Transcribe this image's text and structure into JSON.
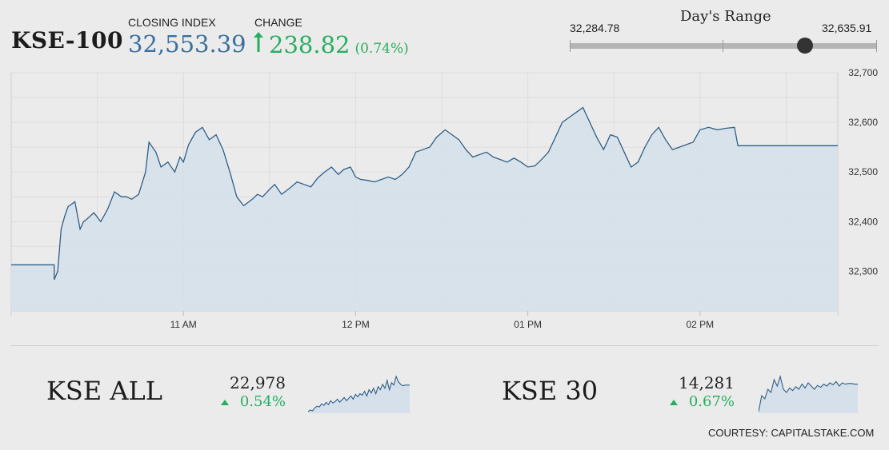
{
  "header": {
    "index_name": "KSE-100",
    "closing_label": "CLOSING INDEX",
    "closing_value": "32,553.39",
    "change_label": "CHANGE",
    "change_value": "238.82",
    "change_pct": "(0.74%)",
    "change_direction": "up",
    "up_color": "#27ae60",
    "value_color": "#3a6fa0"
  },
  "day_range": {
    "title": "Day's Range",
    "low_label": "32,284.78",
    "high_label": "32,635.91",
    "low": 32284.78,
    "high": 32635.91,
    "current": 32553.39
  },
  "chart_data": {
    "type": "area",
    "title": "",
    "xlabel": "",
    "ylabel": "",
    "ylim": [
      32220,
      32700
    ],
    "yticks": [
      32300,
      32400,
      32500,
      32600,
      32700
    ],
    "ytick_labels": [
      "32,300",
      "32,400",
      "32,500",
      "32,600",
      "32,700"
    ],
    "xlim": [
      10.0,
      14.8
    ],
    "xticks": [
      11,
      12,
      13,
      14
    ],
    "xtick_labels": [
      "11 AM",
      "12 PM",
      "01 PM",
      "02 PM"
    ],
    "grid": true,
    "line_color": "#2f5f8a",
    "fill_color": "#d5e0ea",
    "series": [
      {
        "x": [
          10.0,
          10.25,
          10.25,
          10.27,
          10.29,
          10.31,
          10.33,
          10.37,
          10.4,
          10.42,
          10.44,
          10.48,
          10.52,
          10.56,
          10.6,
          10.64,
          10.67,
          10.7,
          10.74,
          10.78,
          10.8,
          10.84,
          10.87,
          10.91,
          10.95,
          10.98,
          11.0,
          11.03,
          11.07,
          11.11,
          11.15,
          11.19,
          11.23,
          11.27,
          11.31,
          11.35,
          11.4,
          11.43,
          11.46,
          11.5,
          11.53,
          11.57,
          11.62,
          11.66,
          11.7,
          11.74,
          11.78,
          11.82,
          11.86,
          11.9,
          11.93,
          11.97,
          12.0,
          12.03,
          12.07,
          12.11,
          12.15,
          12.19,
          12.23,
          12.27,
          12.31,
          12.35,
          12.39,
          12.43,
          12.47,
          12.52,
          12.56,
          12.6,
          12.64,
          12.68,
          12.72,
          12.76,
          12.8,
          12.84,
          12.88,
          12.92,
          12.96,
          13.0,
          13.04,
          13.08,
          13.12,
          13.16,
          13.2,
          13.24,
          13.28,
          13.32,
          13.36,
          13.4,
          13.44,
          13.48,
          13.52,
          13.56,
          13.6,
          13.64,
          13.68,
          13.72,
          13.76,
          13.8,
          13.84,
          13.88,
          13.92,
          13.96,
          14.0,
          14.05,
          14.1,
          14.15,
          14.2,
          14.22,
          14.8
        ],
        "y": [
          32313,
          32313,
          32283,
          32300,
          32385,
          32410,
          32430,
          32440,
          32385,
          32400,
          32405,
          32418,
          32400,
          32425,
          32460,
          32450,
          32450,
          32445,
          32455,
          32500,
          32560,
          32540,
          32510,
          32520,
          32500,
          32530,
          32520,
          32555,
          32580,
          32590,
          32565,
          32575,
          32545,
          32500,
          32450,
          32432,
          32445,
          32455,
          32450,
          32465,
          32475,
          32455,
          32468,
          32480,
          32475,
          32470,
          32488,
          32500,
          32510,
          32495,
          32505,
          32510,
          32490,
          32485,
          32483,
          32480,
          32485,
          32490,
          32485,
          32495,
          32510,
          32540,
          32545,
          32550,
          32570,
          32585,
          32575,
          32565,
          32545,
          32530,
          32535,
          32540,
          32530,
          32525,
          32520,
          32528,
          32520,
          32510,
          32512,
          32525,
          32540,
          32570,
          32600,
          32610,
          32620,
          32630,
          32600,
          32570,
          32545,
          32575,
          32570,
          32540,
          32510,
          32520,
          32550,
          32575,
          32590,
          32565,
          32545,
          32550,
          32555,
          32560,
          32585,
          32590,
          32585,
          32588,
          32590,
          32553,
          32553
        ]
      }
    ]
  },
  "indices": [
    {
      "name": "KSE ALL",
      "value": "22,978",
      "change_pct": "0.54%",
      "spark": [
        10,
        12,
        11,
        15,
        17,
        16,
        20,
        18,
        22,
        19,
        24,
        21,
        23,
        26,
        22,
        25,
        28,
        24,
        27,
        30,
        26,
        32,
        29,
        33,
        31,
        36,
        30,
        38,
        34,
        40,
        33,
        42,
        38,
        45,
        40,
        50,
        38,
        47,
        44,
        55,
        48,
        45,
        43,
        44,
        44,
        44
      ]
    },
    {
      "name": "KSE 30",
      "value": "14,281",
      "change_pct": "0.67%",
      "spark": [
        5,
        30,
        25,
        40,
        35,
        55,
        45,
        60,
        40,
        35,
        42,
        38,
        44,
        40,
        48,
        42,
        50,
        45,
        40,
        46,
        43,
        48,
        45,
        50,
        47,
        52,
        45,
        50,
        48,
        49,
        49,
        48,
        48
      ]
    }
  ],
  "courtesy": "COURTESY: CAPITALSTAKE.COM"
}
